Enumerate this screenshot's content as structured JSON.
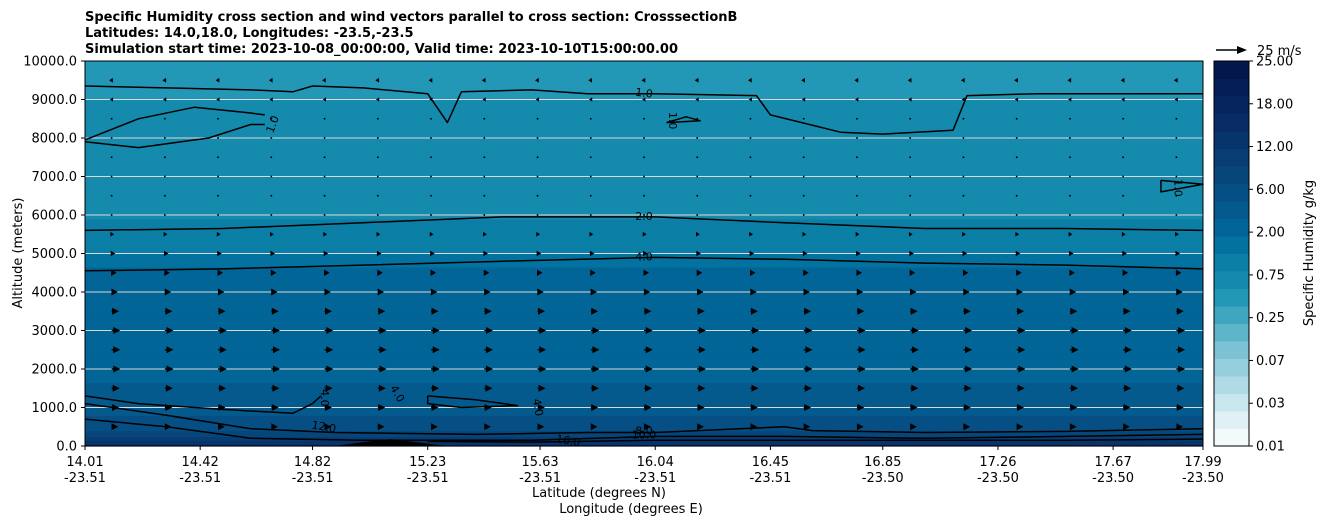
{
  "chart_data": {
    "type": "heatmap",
    "subtype": "vertical cross-section filled contour with contour lines and wind vectors",
    "title": [
      "Specific Humidity cross section and wind vectors parallel to cross section: CrosssectionB",
      "Latitudes: 14.0,18.0, Longitudes: -23.5,-23.5",
      "Simulation start time: 2023-10-08_00:00:00, Valid time: 2023-10-10T15:00:00.00"
    ],
    "xlabel": "Latitude (degrees N)",
    "xlabel2": "Longitude (degrees E)",
    "ylabel": "Altitude (meters)",
    "x_ticks": [
      {
        "lat": "14.01",
        "lon": "-23.51"
      },
      {
        "lat": "14.42",
        "lon": "-23.51"
      },
      {
        "lat": "14.82",
        "lon": "-23.51"
      },
      {
        "lat": "15.23",
        "lon": "-23.51"
      },
      {
        "lat": "15.63",
        "lon": "-23.51"
      },
      {
        "lat": "16.04",
        "lon": "-23.51"
      },
      {
        "lat": "16.45",
        "lon": "-23.51"
      },
      {
        "lat": "16.85",
        "lon": "-23.50"
      },
      {
        "lat": "17.26",
        "lon": "-23.50"
      },
      {
        "lat": "17.67",
        "lon": "-23.50"
      },
      {
        "lat": "17.99",
        "lon": "-23.50"
      }
    ],
    "y_ticks": [
      "0.0",
      "1000.0",
      "2000.0",
      "3000.0",
      "4000.0",
      "5000.0",
      "6000.0",
      "7000.0",
      "8000.0",
      "9000.0",
      "10000.0"
    ],
    "xlim": [
      14.01,
      17.99
    ],
    "ylim": [
      0,
      10000
    ],
    "grid": "horizontal lines at each y tick",
    "colorbar": {
      "label": "Specific Humidity g/kg",
      "tick_labels": [
        "0.01",
        "0.03",
        "0.07",
        "0.25",
        "0.75",
        "2.00",
        "6.00",
        "12.00",
        "18.00",
        "25.00"
      ],
      "levels": [
        0.01,
        0.02,
        0.03,
        0.05,
        0.07,
        0.1,
        0.25,
        0.5,
        0.75,
        1.0,
        2.0,
        3.0,
        4.0,
        6.0,
        8.0,
        10.0,
        12.0,
        14.0,
        16.0,
        18.0,
        20.0,
        22.0,
        25.0
      ],
      "colors": [
        "#f2fafc",
        "#e0f1f5",
        "#c9e6ee",
        "#b0dbe6",
        "#95cfdd",
        "#7bc3d4",
        "#5db5c9",
        "#3ea6be",
        "#2397b6",
        "#158aad",
        "#0b7fa6",
        "#0472a0",
        "#026597",
        "#055a8d",
        "#064f84",
        "#07467b",
        "#073d72",
        "#07346b",
        "#072c66",
        "#06255f",
        "#051e56",
        "#04174c"
      ]
    },
    "contour_labels": [
      "1.0",
      "2.0",
      "4.0",
      "8.0",
      "10.0",
      "12.0",
      "16.0"
    ],
    "humidity_profile": [
      {
        "altitude": 10000,
        "value": 0.9
      },
      {
        "altitude": 8000,
        "value": 1.1
      },
      {
        "altitude": 6000,
        "value": 1.9
      },
      {
        "altitude": 5000,
        "value": 3.0
      },
      {
        "altitude": 4500,
        "value": 4.5
      },
      {
        "altitude": 2000,
        "value": 5.5
      },
      {
        "altitude": 1000,
        "value": 7
      },
      {
        "altitude": 400,
        "value": 10
      },
      {
        "altitude": 200,
        "value": 13
      },
      {
        "altitude": 0,
        "value": 17
      }
    ],
    "contour_lines": [
      {
        "level": 1.0,
        "points": [
          [
            14.01,
            9350
          ],
          [
            14.3,
            9300
          ],
          [
            14.6,
            9250
          ],
          [
            14.75,
            9200
          ],
          [
            14.82,
            9350
          ],
          [
            15.0,
            9300
          ],
          [
            15.23,
            9150
          ],
          [
            15.3,
            8400
          ],
          [
            15.35,
            9200
          ],
          [
            15.6,
            9250
          ],
          [
            15.8,
            9150
          ],
          [
            16.04,
            9150
          ],
          [
            16.4,
            9100
          ],
          [
            16.45,
            8600
          ],
          [
            16.7,
            8150
          ],
          [
            16.85,
            8100
          ],
          [
            17.1,
            8200
          ],
          [
            17.15,
            9100
          ],
          [
            17.4,
            9150
          ],
          [
            17.67,
            9150
          ],
          [
            17.99,
            9150
          ]
        ]
      },
      {
        "level": 1.0,
        "points": [
          [
            14.01,
            7950
          ],
          [
            14.2,
            8500
          ],
          [
            14.4,
            8800
          ],
          [
            14.6,
            8650
          ],
          [
            14.65,
            8600
          ]
        ]
      },
      {
        "level": 1.0,
        "points": [
          [
            14.01,
            7900
          ],
          [
            14.2,
            7750
          ],
          [
            14.45,
            8000
          ],
          [
            14.6,
            8350
          ],
          [
            14.65,
            8350
          ]
        ]
      },
      {
        "level": 1.0,
        "points": [
          [
            17.84,
            6900
          ],
          [
            17.99,
            6800
          ],
          [
            17.84,
            6600
          ],
          [
            17.84,
            6900
          ]
        ]
      },
      {
        "level": 1.0,
        "points": [
          [
            16.08,
            8400
          ],
          [
            16.15,
            8550
          ],
          [
            16.2,
            8450
          ],
          [
            16.08,
            8400
          ]
        ]
      },
      {
        "level": 2.0,
        "points": [
          [
            14.01,
            5600
          ],
          [
            14.5,
            5650
          ],
          [
            15.0,
            5800
          ],
          [
            15.5,
            5950
          ],
          [
            15.8,
            5950
          ],
          [
            16.04,
            5950
          ],
          [
            16.5,
            5800
          ],
          [
            17.0,
            5650
          ],
          [
            17.5,
            5650
          ],
          [
            17.99,
            5600
          ]
        ]
      },
      {
        "level": 4.0,
        "points": [
          [
            14.01,
            4550
          ],
          [
            14.5,
            4600
          ],
          [
            15.0,
            4700
          ],
          [
            15.5,
            4800
          ],
          [
            16.04,
            4900
          ],
          [
            16.5,
            4850
          ],
          [
            17.0,
            4750
          ],
          [
            17.5,
            4700
          ],
          [
            17.99,
            4600
          ]
        ]
      },
      {
        "level": 4.0,
        "points": [
          [
            14.01,
            1300
          ],
          [
            14.2,
            1100
          ],
          [
            14.5,
            950
          ],
          [
            14.75,
            850
          ],
          [
            14.82,
            1100
          ],
          [
            14.85,
            1300
          ]
        ]
      },
      {
        "level": 4.0,
        "points": [
          [
            15.23,
            1300
          ],
          [
            15.4,
            1200
          ],
          [
            15.55,
            1050
          ],
          [
            15.35,
            1000
          ],
          [
            15.23,
            1100
          ],
          [
            15.23,
            1300
          ]
        ]
      },
      {
        "level": 8.0,
        "points": [
          [
            14.01,
            1100
          ],
          [
            14.3,
            800
          ],
          [
            14.6,
            450
          ],
          [
            14.9,
            350
          ],
          [
            15.4,
            300
          ],
          [
            15.8,
            350
          ],
          [
            16.04,
            350
          ],
          [
            16.5,
            500
          ],
          [
            16.6,
            400
          ],
          [
            17.0,
            350
          ],
          [
            17.5,
            380
          ],
          [
            17.99,
            450
          ]
        ]
      },
      {
        "level": 12.0,
        "points": [
          [
            14.01,
            700
          ],
          [
            14.3,
            500
          ],
          [
            14.6,
            200
          ],
          [
            15.0,
            150
          ],
          [
            15.6,
            150
          ],
          [
            16.04,
            250
          ],
          [
            16.5,
            250
          ],
          [
            17.0,
            200
          ],
          [
            17.5,
            250
          ],
          [
            17.99,
            300
          ]
        ]
      },
      {
        "level": 16.0,
        "points": [
          [
            15.23,
            120
          ],
          [
            15.6,
            100
          ],
          [
            16.04,
            150
          ],
          [
            16.5,
            150
          ],
          [
            17.0,
            150
          ],
          [
            17.5,
            150
          ],
          [
            17.99,
            180
          ]
        ]
      }
    ],
    "terrain": {
      "points": [
        [
          14.9,
          0
        ],
        [
          15.0,
          100
        ],
        [
          15.1,
          180
        ],
        [
          15.2,
          90
        ],
        [
          15.3,
          0
        ]
      ]
    },
    "wind_key": "25 m/s",
    "wind_profile": [
      {
        "altitude": 9500,
        "u": -2
      },
      {
        "altitude": 8500,
        "u": -1
      },
      {
        "altitude": 7000,
        "u": 0.5
      },
      {
        "altitude": 6000,
        "u": 1
      },
      {
        "altitude": 5000,
        "u": 3
      },
      {
        "altitude": 4000,
        "u": 5
      },
      {
        "altitude": 3000,
        "u": 7
      },
      {
        "altitude": 2000,
        "u": 7
      },
      {
        "altitude": 1000,
        "u": 6
      },
      {
        "altitude": 250,
        "u": 5
      }
    ]
  }
}
